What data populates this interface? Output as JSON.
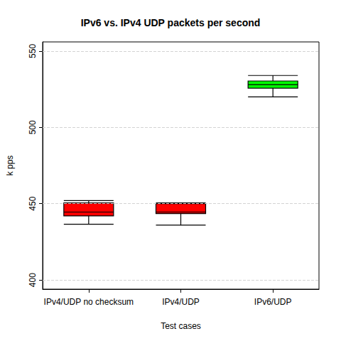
{
  "chart_data": {
    "type": "boxplot",
    "title": "IPv6 vs. IPv4 UDP packets per second",
    "x_label": "Test cases",
    "y_label": "k pps",
    "categories": [
      "IPv4/UDP no checksum",
      "IPv4/UDP",
      "IPv6/UDP"
    ],
    "values": [
      [
        436.5,
        442,
        444.5,
        450.5,
        452
      ],
      [
        436,
        443.5,
        444.5,
        450,
        450.5
      ],
      [
        520,
        525.7,
        528,
        530.4,
        534
      ]
    ],
    "colors": [
      "#ff0000",
      "#ff0000",
      "#00ff00"
    ],
    "ylim": [
      394,
      556
    ],
    "yticks": [
      400,
      450,
      500,
      550
    ],
    "grid": true
  }
}
